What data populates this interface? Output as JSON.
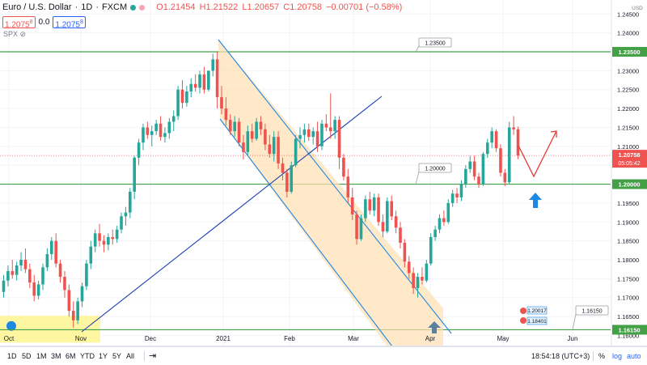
{
  "header": {
    "symbol_name": "Euro / U.S. Dollar",
    "interval": "1D",
    "exchange": "FXCM",
    "open": "O1.21454",
    "high": "H1.21522",
    "low": "L1.20657",
    "close": "C1.20758",
    "change": "−0.00701 (−0.58%)",
    "bid": "1.2075",
    "bid_sup": "8",
    "spread": "0.0",
    "ask": "1.2075",
    "ask_sup": "8",
    "compare_symbol": "SPX",
    "colors": {
      "down": "#ef5350",
      "up": "#26a69a",
      "accent": "#2962ff"
    }
  },
  "chart_data": {
    "type": "candlestick",
    "currency": "USD",
    "ylim": [
      1.1571,
      1.2487
    ],
    "y_ticks": [
      "1.24500",
      "1.24000",
      "1.23500",
      "1.23000",
      "1.22500",
      "1.22000",
      "1.21500",
      "1.21000",
      "1.20500",
      "1.20000",
      "1.19500",
      "1.19000",
      "1.18500",
      "1.18000",
      "1.17500",
      "1.17000",
      "1.16500",
      "1.16000"
    ],
    "x_ticks": [
      "Oct",
      "Nov",
      "Dec",
      "2021",
      "Feb",
      "Mar",
      "Apr",
      "May",
      "Jun"
    ],
    "current_price": "1.20758",
    "countdown": "05:05:42",
    "horizontal_levels": [
      {
        "price": 1.235,
        "label": "1.23500"
      },
      {
        "price": 1.2,
        "label": "1.20000"
      },
      {
        "price": 1.1615,
        "label": "1.16150"
      }
    ],
    "mini_labels": [
      "1.20017",
      "1.18401"
    ],
    "candles": [
      [
        1.1715,
        1.176,
        1.17,
        1.1745
      ],
      [
        1.1745,
        1.1785,
        1.173,
        1.177
      ],
      [
        1.177,
        1.18,
        1.175,
        1.176
      ],
      [
        1.176,
        1.1795,
        1.1745,
        1.1785
      ],
      [
        1.1785,
        1.182,
        1.177,
        1.18
      ],
      [
        1.18,
        1.183,
        1.1765,
        1.1775
      ],
      [
        1.1775,
        1.179,
        1.1725,
        1.174
      ],
      [
        1.174,
        1.176,
        1.169,
        1.1705
      ],
      [
        1.1705,
        1.1745,
        1.1695,
        1.1735
      ],
      [
        1.1735,
        1.179,
        1.172,
        1.178
      ],
      [
        1.178,
        1.183,
        1.177,
        1.1815
      ],
      [
        1.1815,
        1.186,
        1.18,
        1.185
      ],
      [
        1.185,
        1.187,
        1.178,
        1.179
      ],
      [
        1.179,
        1.18,
        1.174,
        1.1755
      ],
      [
        1.1755,
        1.177,
        1.17,
        1.172
      ],
      [
        1.172,
        1.1735,
        1.165,
        1.1665
      ],
      [
        1.1665,
        1.169,
        1.162,
        1.164
      ],
      [
        1.164,
        1.17,
        1.163,
        1.169
      ],
      [
        1.169,
        1.174,
        1.1675,
        1.173
      ],
      [
        1.173,
        1.18,
        1.172,
        1.179
      ],
      [
        1.179,
        1.185,
        1.1775,
        1.1835
      ],
      [
        1.1835,
        1.188,
        1.182,
        1.187
      ],
      [
        1.187,
        1.1895,
        1.1835,
        1.185
      ],
      [
        1.185,
        1.1865,
        1.182,
        1.184
      ],
      [
        1.184,
        1.187,
        1.1825,
        1.186
      ],
      [
        1.186,
        1.188,
        1.184,
        1.1855
      ],
      [
        1.1855,
        1.189,
        1.1845,
        1.188
      ],
      [
        1.188,
        1.1925,
        1.187,
        1.1915
      ],
      [
        1.1915,
        1.194,
        1.189,
        1.1925
      ],
      [
        1.1925,
        1.199,
        1.191,
        1.198
      ],
      [
        1.198,
        1.2075,
        1.196,
        1.207
      ],
      [
        1.207,
        1.212,
        1.205,
        1.211
      ],
      [
        1.211,
        1.216,
        1.209,
        1.215
      ],
      [
        1.215,
        1.2165,
        1.212,
        1.213
      ],
      [
        1.213,
        1.2155,
        1.21,
        1.214
      ],
      [
        1.214,
        1.217,
        1.213,
        1.216
      ],
      [
        1.216,
        1.218,
        1.2115,
        1.2125
      ],
      [
        1.2125,
        1.215,
        1.211,
        1.2135
      ],
      [
        1.2135,
        1.2175,
        1.212,
        1.2165
      ],
      [
        1.2165,
        1.2195,
        1.214,
        1.218
      ],
      [
        1.218,
        1.226,
        1.217,
        1.225
      ],
      [
        1.225,
        1.2275,
        1.22,
        1.2215
      ],
      [
        1.2215,
        1.226,
        1.2205,
        1.2245
      ],
      [
        1.2245,
        1.228,
        1.223,
        1.2265
      ],
      [
        1.2265,
        1.229,
        1.2245,
        1.2255
      ],
      [
        1.2255,
        1.23,
        1.224,
        1.229
      ],
      [
        1.229,
        1.231,
        1.224,
        1.225
      ],
      [
        1.225,
        1.23,
        1.2245,
        1.23
      ],
      [
        1.23,
        1.2345,
        1.2285,
        1.233
      ],
      [
        1.233,
        1.2349,
        1.22,
        1.223
      ],
      [
        1.223,
        1.226,
        1.2185,
        1.22
      ],
      [
        1.22,
        1.223,
        1.2155,
        1.217
      ],
      [
        1.217,
        1.2185,
        1.213,
        1.214
      ],
      [
        1.214,
        1.218,
        1.2125,
        1.2165
      ],
      [
        1.2165,
        1.2175,
        1.21,
        1.211
      ],
      [
        1.211,
        1.213,
        1.2065,
        1.2085
      ],
      [
        1.2085,
        1.2155,
        1.2075,
        1.214
      ],
      [
        1.214,
        1.216,
        1.211,
        1.212
      ],
      [
        1.212,
        1.2175,
        1.2115,
        1.2165
      ],
      [
        1.2165,
        1.218,
        1.213,
        1.2145
      ],
      [
        1.2145,
        1.216,
        1.209,
        1.2105
      ],
      [
        1.2105,
        1.213,
        1.207,
        1.208
      ],
      [
        1.208,
        1.214,
        1.206,
        1.2125
      ],
      [
        1.2125,
        1.214,
        1.204,
        1.2055
      ],
      [
        1.2055,
        1.207,
        1.201,
        1.203
      ],
      [
        1.203,
        1.204,
        1.1965,
        1.198
      ],
      [
        1.198,
        1.206,
        1.1975,
        1.205
      ],
      [
        1.205,
        1.213,
        1.2045,
        1.212
      ],
      [
        1.212,
        1.215,
        1.2095,
        1.213
      ],
      [
        1.213,
        1.216,
        1.211,
        1.2145
      ],
      [
        1.2145,
        1.216,
        1.2115,
        1.2125
      ],
      [
        1.2125,
        1.215,
        1.2105,
        1.214
      ],
      [
        1.214,
        1.2165,
        1.2085,
        1.21
      ],
      [
        1.21,
        1.217,
        1.209,
        1.216
      ],
      [
        1.216,
        1.2185,
        1.214,
        1.215
      ],
      [
        1.215,
        1.224,
        1.212,
        1.214
      ],
      [
        1.214,
        1.218,
        1.212,
        1.217
      ],
      [
        1.217,
        1.218,
        1.204,
        1.207
      ],
      [
        1.207,
        1.208,
        1.201,
        1.202
      ],
      [
        1.202,
        1.204,
        1.195,
        1.1965
      ],
      [
        1.1965,
        1.199,
        1.1905,
        1.192
      ],
      [
        1.192,
        1.193,
        1.184,
        1.1855
      ],
      [
        1.1855,
        1.192,
        1.185,
        1.191
      ],
      [
        1.191,
        1.197,
        1.19,
        1.196
      ],
      [
        1.196,
        1.198,
        1.192,
        1.193
      ],
      [
        1.193,
        1.1975,
        1.1915,
        1.1965
      ],
      [
        1.1965,
        1.1975,
        1.189,
        1.19
      ],
      [
        1.19,
        1.192,
        1.186,
        1.1875
      ],
      [
        1.1875,
        1.1965,
        1.187,
        1.1955
      ],
      [
        1.1955,
        1.197,
        1.1905,
        1.1915
      ],
      [
        1.1915,
        1.193,
        1.187,
        1.1885
      ],
      [
        1.1885,
        1.19,
        1.183,
        1.1845
      ],
      [
        1.1845,
        1.1855,
        1.178,
        1.1795
      ],
      [
        1.1795,
        1.181,
        1.175,
        1.1765
      ],
      [
        1.1765,
        1.178,
        1.171,
        1.1725
      ],
      [
        1.1725,
        1.1765,
        1.17,
        1.1755
      ],
      [
        1.1755,
        1.178,
        1.1735,
        1.1745
      ],
      [
        1.1745,
        1.18,
        1.174,
        1.179
      ],
      [
        1.179,
        1.187,
        1.1785,
        1.186
      ],
      [
        1.186,
        1.189,
        1.185,
        1.188
      ],
      [
        1.188,
        1.192,
        1.187,
        1.191
      ],
      [
        1.191,
        1.193,
        1.189,
        1.19
      ],
      [
        1.19,
        1.196,
        1.1895,
        1.195
      ],
      [
        1.195,
        1.1985,
        1.194,
        1.1975
      ],
      [
        1.1975,
        1.199,
        1.195,
        1.1965
      ],
      [
        1.1965,
        1.201,
        1.1955,
        1.2
      ],
      [
        1.2,
        1.205,
        1.199,
        1.204
      ],
      [
        1.204,
        1.2075,
        1.203,
        1.206
      ],
      [
        1.206,
        1.2075,
        1.201,
        1.202
      ],
      [
        1.202,
        1.203,
        1.199,
        1.2
      ],
      [
        1.2,
        1.2085,
        1.1995,
        1.208
      ],
      [
        1.208,
        1.212,
        1.207,
        1.211
      ],
      [
        1.211,
        1.215,
        1.2095,
        1.214
      ],
      [
        1.214,
        1.2145,
        1.2085,
        1.2095
      ],
      [
        1.2095,
        1.2105,
        1.202,
        1.203
      ],
      [
        1.203,
        1.204,
        1.1995,
        1.2005
      ],
      [
        1.2005,
        1.2165,
        1.2,
        1.215
      ],
      [
        1.215,
        1.218,
        1.213,
        1.2145
      ],
      [
        1.2145,
        1.2152,
        1.2066,
        1.2076
      ]
    ]
  },
  "drawings": {
    "projection_arrow_color": "#e53935",
    "up_arrow_color": "#1e88e5",
    "channel_color": "#1e88e5",
    "trendline_color": "#1a3fb0",
    "level_color": "#43a047",
    "zone_color": "#fff59d"
  },
  "bottom_bar": {
    "ranges": [
      "1D",
      "5D",
      "1M",
      "3M",
      "6M",
      "YTD",
      "1Y",
      "5Y",
      "All"
    ],
    "time": "18:54:18 (UTC+3)",
    "percent": "%",
    "log": "log",
    "auto": "auto"
  }
}
